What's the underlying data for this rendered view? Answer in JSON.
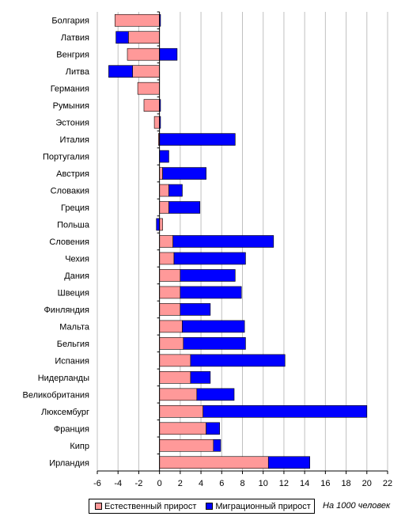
{
  "chart_data": {
    "type": "bar",
    "orientation": "horizontal",
    "stacked": true,
    "categories": [
      "Болгария",
      "Латвия",
      "Венгрия",
      "Литва",
      "Германия",
      "Румыния",
      "Эстония",
      "Италия",
      "Португалия",
      "Австрия",
      "Словакия",
      "Греция",
      "Польша",
      "Словения",
      "Чехия",
      "Дания",
      "Швеция",
      "Финляндия",
      "Мальта",
      "Бельгия",
      "Испания",
      "Нидерланды",
      "Великобритания",
      "Люксембург",
      "Франция",
      "Кипр",
      "Ирландия"
    ],
    "series": [
      {
        "name": "Естественный прирост",
        "color": "#ff9999",
        "values": [
          -4.3,
          -3.0,
          -3.1,
          -2.6,
          -2.1,
          -1.5,
          -0.5,
          -0.1,
          0.0,
          0.3,
          0.9,
          0.9,
          0.3,
          1.3,
          1.4,
          2.0,
          2.0,
          2.0,
          2.2,
          2.3,
          3.0,
          3.0,
          3.6,
          4.2,
          4.5,
          5.2,
          10.5
        ]
      },
      {
        "name": "Миграционный прирост",
        "color": "#0000ff",
        "values": [
          0.1,
          -1.2,
          1.7,
          -2.3,
          0.0,
          0.1,
          0.1,
          7.3,
          0.9,
          4.2,
          1.3,
          3.0,
          -0.3,
          9.7,
          6.9,
          5.3,
          5.9,
          2.9,
          6.0,
          6.0,
          9.1,
          1.9,
          3.6,
          15.8,
          1.3,
          0.7,
          4.0
        ]
      }
    ],
    "xlim": [
      -6,
      22
    ],
    "xticks": [
      "-6",
      "-4",
      "-2",
      "0",
      "2",
      "4",
      "6",
      "8",
      "10",
      "12",
      "14",
      "16",
      "18",
      "20",
      "22"
    ],
    "grid": true,
    "legend_position": "bottom",
    "note": "На 1000 человек"
  },
  "colors": {
    "natural": "#ff9999",
    "migration": "#0000ff",
    "grid": "#c0c0c0",
    "axis": "#000000"
  }
}
